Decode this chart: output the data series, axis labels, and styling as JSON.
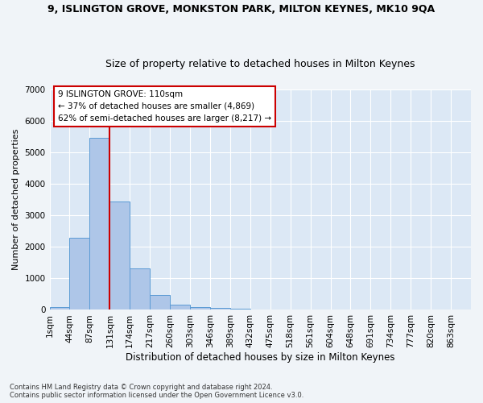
{
  "title_line1": "9, ISLINGTON GROVE, MONKSTON PARK, MILTON KEYNES, MK10 9QA",
  "title_line2": "Size of property relative to detached houses in Milton Keynes",
  "xlabel": "Distribution of detached houses by size in Milton Keynes",
  "ylabel": "Number of detached properties",
  "bin_labels": [
    "1sqm",
    "44sqm",
    "87sqm",
    "131sqm",
    "174sqm",
    "217sqm",
    "260sqm",
    "303sqm",
    "346sqm",
    "389sqm",
    "432sqm",
    "475sqm",
    "518sqm",
    "561sqm",
    "604sqm",
    "648sqm",
    "691sqm",
    "734sqm",
    "777sqm",
    "820sqm",
    "863sqm"
  ],
  "bar_values": [
    80,
    2300,
    5450,
    3450,
    1320,
    470,
    160,
    90,
    60,
    40,
    0,
    0,
    0,
    0,
    0,
    0,
    0,
    0,
    0,
    0,
    0
  ],
  "bar_color": "#aec6e8",
  "bar_edge_color": "#5b9bd5",
  "vline_color": "#cc0000",
  "vline_x": 3.0,
  "annotation_text": "9 ISLINGTON GROVE: 110sqm\n← 37% of detached houses are smaller (4,869)\n62% of semi-detached houses are larger (8,217) →",
  "annotation_box_color": "#ffffff",
  "annotation_box_edge": "#cc0000",
  "ylim": [
    0,
    7000
  ],
  "yticks": [
    0,
    1000,
    2000,
    3000,
    4000,
    5000,
    6000,
    7000
  ],
  "footnote": "Contains HM Land Registry data © Crown copyright and database right 2024.\nContains public sector information licensed under the Open Government Licence v3.0.",
  "fig_bg_color": "#f0f4f8",
  "plot_bg_color": "#dce8f5",
  "title1_fontsize": 9,
  "title2_fontsize": 9,
  "xlabel_fontsize": 8.5,
  "ylabel_fontsize": 8,
  "tick_fontsize": 7.5,
  "annot_fontsize": 7.5
}
